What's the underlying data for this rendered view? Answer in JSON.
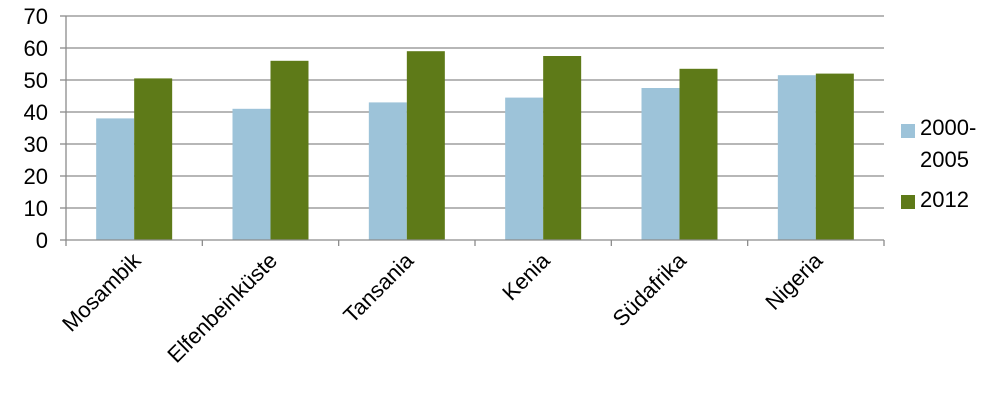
{
  "chart_data": {
    "type": "bar",
    "title": "",
    "xlabel": "",
    "ylabel": "",
    "categories": [
      "Mosambik",
      "Elfenbeinküste",
      "Tansania",
      "Kenia",
      "Südafrika",
      "Nigeria"
    ],
    "series": [
      {
        "name": "2000-2005",
        "legend_lines": [
          "2000-",
          "2005"
        ],
        "values": [
          38,
          41,
          43,
          44.5,
          47.5,
          51.5
        ],
        "color": "#9DC3D9"
      },
      {
        "name": "2012",
        "legend_lines": [
          "2012"
        ],
        "values": [
          50.5,
          56,
          59,
          57.5,
          53.5,
          52
        ],
        "color": "#5E7A18"
      }
    ],
    "ylim": [
      0,
      70
    ],
    "yticks": [
      0,
      10,
      20,
      30,
      40,
      50,
      60,
      70
    ],
    "grid": true,
    "legend_position": "right"
  }
}
